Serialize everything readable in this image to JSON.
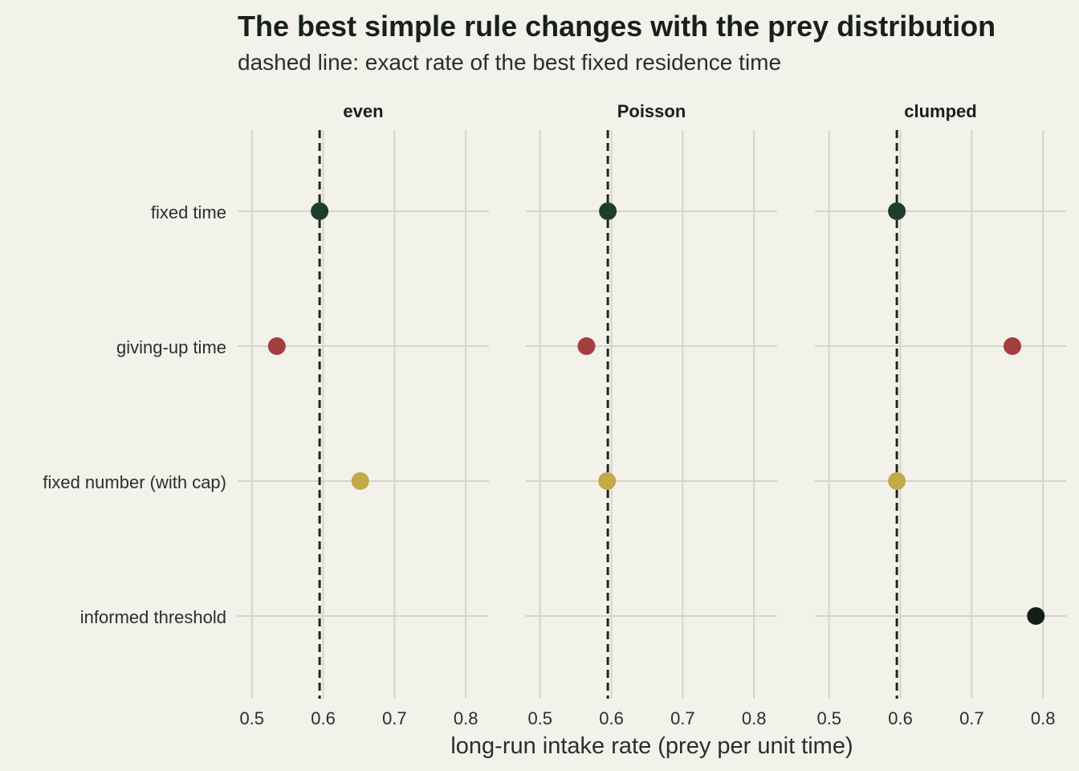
{
  "chart_data": {
    "type": "scatter",
    "title": "The best simple rule changes with the prey distribution",
    "subtitle": "dashed line: exact rate of the best fixed residence time",
    "xlabel": "long-run intake rate (prey per unit time)",
    "ylabel": "",
    "xlim": [
      0.48,
      0.835
    ],
    "xticks": [
      0.5,
      0.6,
      0.7,
      0.8
    ],
    "xtick_labels": [
      "0.5",
      "0.6",
      "0.7",
      "0.8"
    ],
    "categories": [
      "fixed time",
      "giving-up time",
      "fixed number (with cap)",
      "informed threshold"
    ],
    "reference_line": 0.595,
    "grid": true,
    "legend": "none",
    "series": [
      {
        "color": "#1f3d2c",
        "values": [
          0.595,
          0.595,
          0.595
        ]
      },
      {
        "color": "#a23e3e",
        "values": [
          0.535,
          0.565,
          0.757
        ]
      },
      {
        "color": "#c3a948",
        "values": [
          0.652,
          0.594,
          0.595
        ]
      },
      {
        "color": "#141c17",
        "values": [
          null,
          null,
          0.79
        ]
      }
    ],
    "panels": [
      {
        "label": "even"
      },
      {
        "label": "Poisson"
      },
      {
        "label": "clumped"
      }
    ]
  },
  "colors": {
    "background": "#f2f1ea",
    "grid": "#d6d5c6",
    "reference": "#1f2622",
    "text": "#17201b"
  }
}
